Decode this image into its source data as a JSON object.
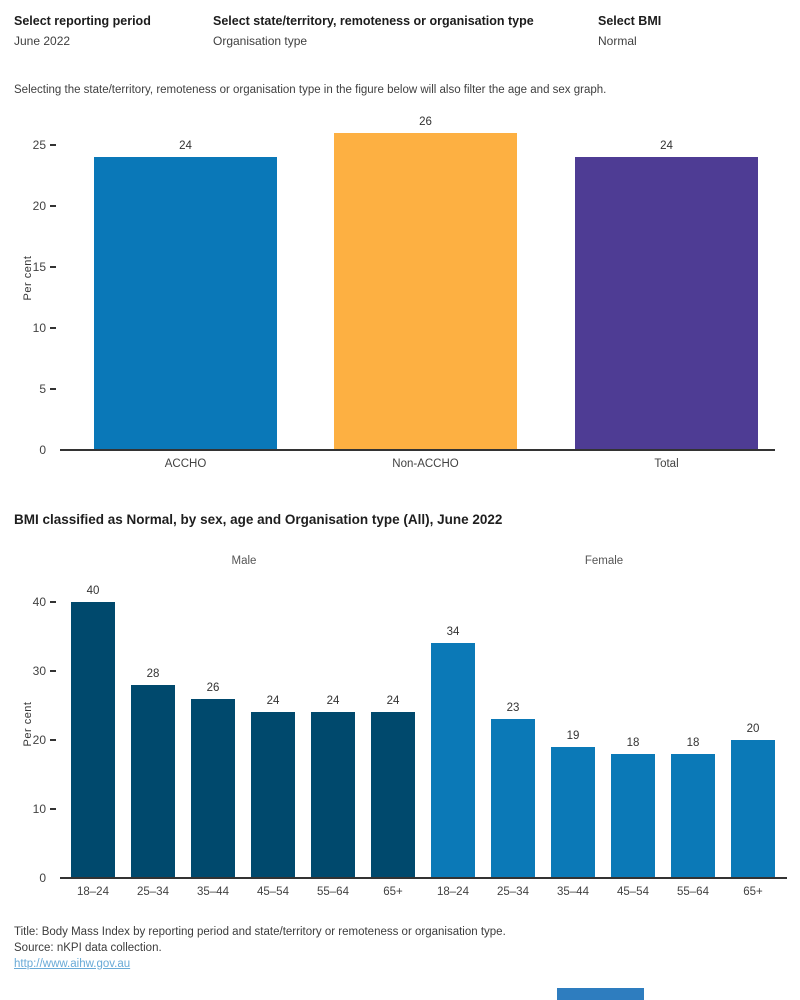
{
  "filters": [
    {
      "label": "Select reporting period",
      "value": "June 2022"
    },
    {
      "label": "Select state/territory, remoteness or organisation type",
      "value": "Organisation type"
    },
    {
      "label": "Select BMI",
      "value": "Normal"
    }
  ],
  "note": "Selecting the state/territory, remoteness or organisation type in the figure below will also filter the age and sex graph.",
  "chart_data": [
    {
      "type": "bar",
      "categories": [
        "ACCHO",
        "Non-ACCHO",
        "Total"
      ],
      "values": [
        24,
        26,
        24
      ],
      "bar_colors": [
        "#0a78b8",
        "#fdb042",
        "#4e3c94"
      ],
      "title": "",
      "xlabel": "",
      "ylabel": "Per cent",
      "yticks": [
        0,
        5,
        10,
        15,
        20,
        25
      ],
      "ylim": [
        0,
        27
      ],
      "grid": false,
      "legend": "none"
    },
    {
      "type": "bar",
      "title": "BMI classified as Normal, by sex, age and Organisation type (All), June 2022",
      "group_labels": [
        "Male",
        "Female"
      ],
      "categories": [
        "18–24",
        "25–34",
        "35–44",
        "45–54",
        "55–64",
        "65+"
      ],
      "series": [
        {
          "name": "Male",
          "values": [
            40,
            28,
            26,
            24,
            24,
            24
          ],
          "color": "#00496d"
        },
        {
          "name": "Female",
          "values": [
            34,
            23,
            19,
            18,
            18,
            20
          ],
          "color": "#0b79b7"
        }
      ],
      "xlabel": "",
      "ylabel": "Per cent",
      "yticks": [
        0,
        10,
        20,
        30,
        40
      ],
      "ylim": [
        0,
        43
      ],
      "grid": false,
      "legend": "none"
    }
  ],
  "footer": {
    "title_line": "Title: Body Mass Index by reporting period and state/territory or remoteness or organisation type.",
    "source_line": "Source: nKPI data collection.",
    "link": "http://www.aihw.gov.au"
  },
  "colors": {
    "accho_blue": "#0a78b8",
    "non_accho_orange": "#fdb042",
    "total_purple": "#4e3c94",
    "male_navy": "#00496d",
    "female_blue": "#0b79b7",
    "axis": "#333333",
    "link_blue": "#69aad7",
    "scrollbar_blue": "#2e7dbf"
  }
}
